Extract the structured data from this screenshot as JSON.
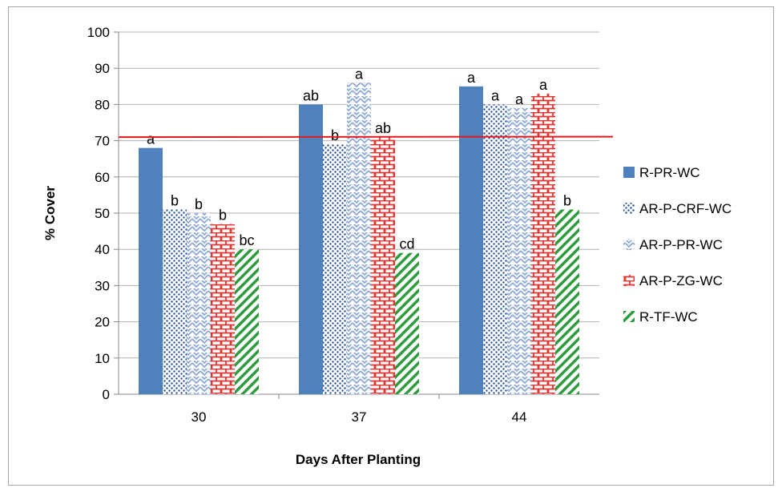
{
  "chart_data": {
    "type": "bar",
    "categories": [
      "30",
      "37",
      "44"
    ],
    "xlabel": "Days After Planting",
    "ylabel": "% Cover",
    "ylim": [
      0,
      100
    ],
    "yticks": [
      0,
      10,
      20,
      30,
      40,
      50,
      60,
      70,
      80,
      90,
      100
    ],
    "grid": true,
    "legend_position": "right",
    "reference_line": {
      "y": 71,
      "color": "#e31a1c"
    },
    "series": [
      {
        "name": "R-PR-WC",
        "color": "#4f81bd",
        "pattern": "solid",
        "values": [
          68,
          80,
          85
        ],
        "letters": [
          "a",
          "ab",
          "a"
        ]
      },
      {
        "name": "AR-P-CRF-WC",
        "color": "#1f4e96",
        "pattern": "dots",
        "values": [
          51,
          69,
          80
        ],
        "letters": [
          "b",
          "b",
          "a"
        ]
      },
      {
        "name": "AR-P-PR-WC",
        "color": "#8ea9d6",
        "pattern": "zigzag",
        "values": [
          50,
          86,
          79
        ],
        "letters": [
          "b",
          "a",
          "a"
        ]
      },
      {
        "name": "AR-P-ZG-WC",
        "color": "#e8322d",
        "pattern": "bricks",
        "values": [
          47,
          71,
          83
        ],
        "letters": [
          "b",
          "ab",
          "a"
        ]
      },
      {
        "name": "R-TF-WC",
        "color": "#2e9b3e",
        "pattern": "diagonal",
        "values": [
          40,
          39,
          51
        ],
        "letters": [
          "bc",
          "cd",
          "b"
        ]
      }
    ]
  }
}
